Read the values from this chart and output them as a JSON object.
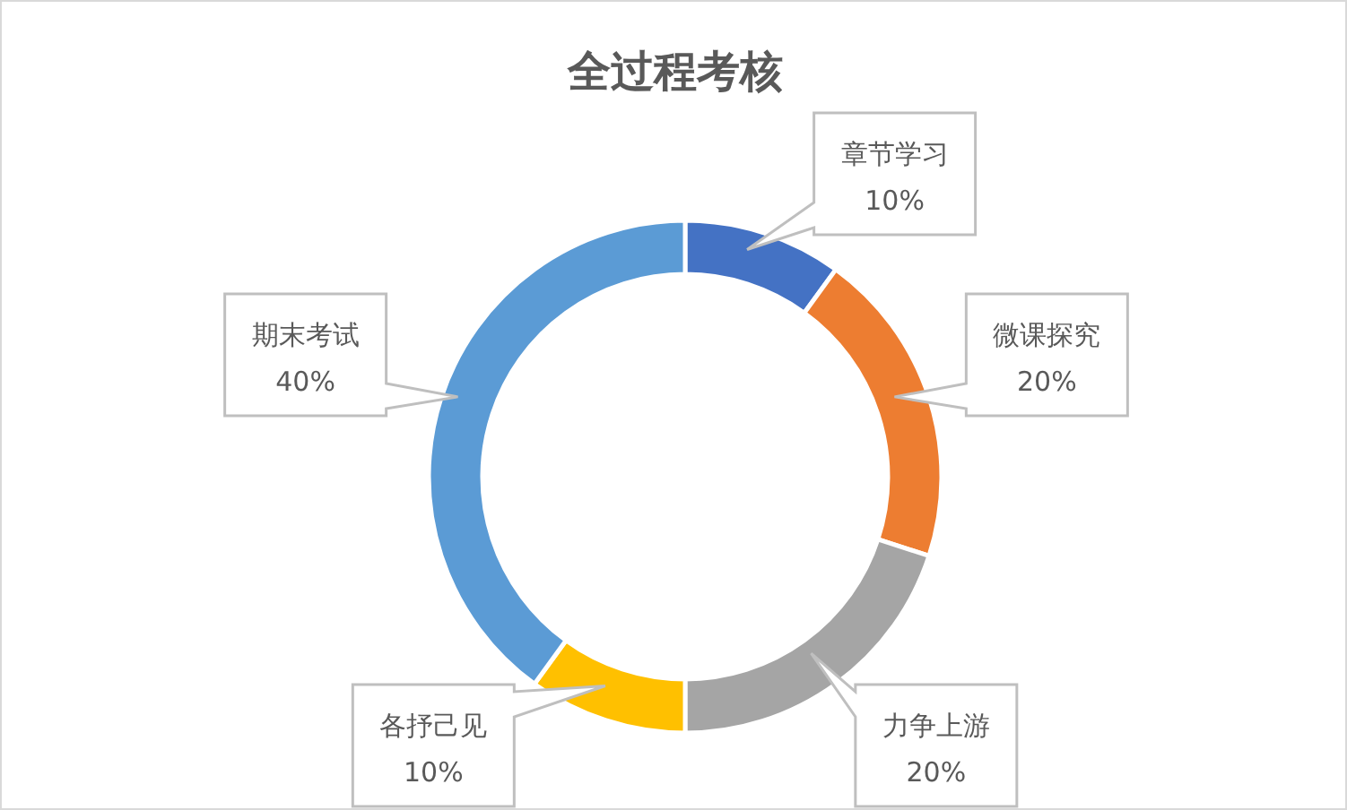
{
  "chart_data": {
    "type": "donut",
    "title": "全过程考核",
    "categories": [
      "章节学习",
      "微课探究",
      "力争上游",
      "各抒己见",
      "期末考试"
    ],
    "values": [
      10,
      20,
      20,
      10,
      40
    ],
    "colors": [
      "#4472c4",
      "#ed7d31",
      "#a5a5a5",
      "#ffc000",
      "#5b9bd5"
    ],
    "value_labels": [
      "10%",
      "20%",
      "20%",
      "10%",
      "40%"
    ]
  }
}
